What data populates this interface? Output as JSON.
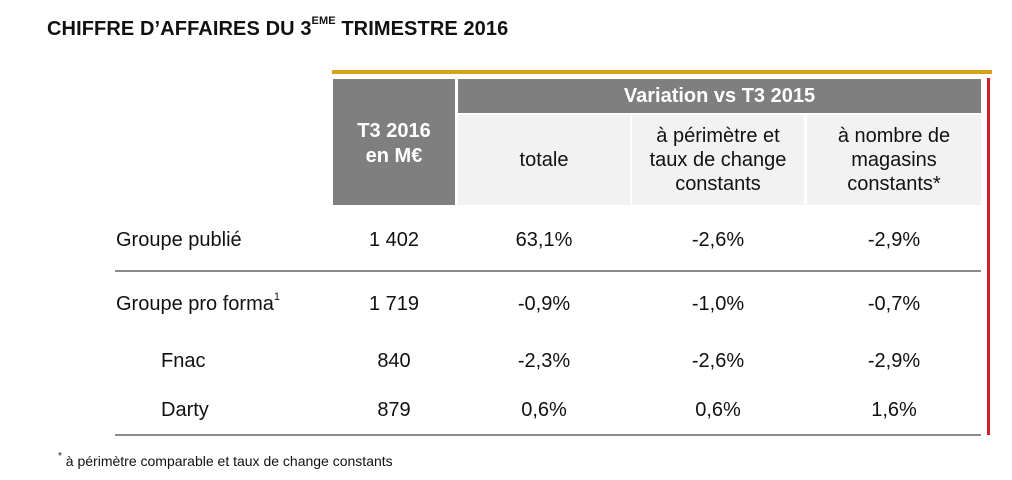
{
  "title": {
    "prefix": "CHIFFRE D’AFFAIRES DU 3",
    "superscript": "EME",
    "suffix": " TRIMESTRE 2016"
  },
  "table": {
    "header": {
      "t3": [
        "T3 2016",
        "en M€"
      ],
      "variation": "Variation vs T3 2015",
      "subcolumns": [
        [
          "totale"
        ],
        [
          "à périmètre et",
          "taux de change",
          "constants"
        ],
        [
          "à nombre de",
          "magasins",
          "constants*"
        ]
      ]
    },
    "rows": [
      {
        "label": "Groupe publié",
        "sup": "",
        "values": [
          "1 402",
          "63,1%",
          "-2,6%",
          "-2,9%"
        ]
      },
      {
        "label": "Groupe pro forma",
        "sup": "1",
        "values": [
          "1 719",
          "-0,9%",
          "-1,0%",
          "-0,7%"
        ]
      },
      {
        "label": "Fnac",
        "sup": "",
        "values": [
          "840",
          "-2,3%",
          "-2,6%",
          "-2,9%"
        ]
      },
      {
        "label": "Darty",
        "sup": "",
        "values": [
          "879",
          "0,6%",
          "0,6%",
          "1,6%"
        ]
      }
    ]
  },
  "footnote": {
    "marker": "*",
    "text": " à périmètre comparable et taux de change constants"
  },
  "colors": {
    "header_gray": "#7f7f7f",
    "subheader_bg": "#f2f2f2",
    "gold_rule": "#d9a01f",
    "red_rule": "#d21f2b",
    "divider": "#8c8c8c"
  }
}
